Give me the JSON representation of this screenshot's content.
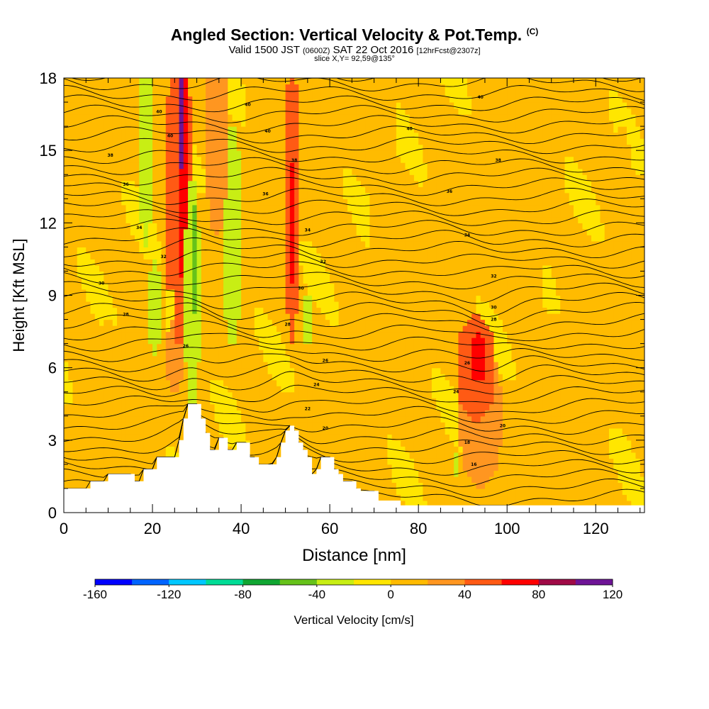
{
  "header": {
    "title": "Angled Section: Vertical Velocity & Pot.Temp.",
    "title_suffix": "(C)",
    "valid_prefix": "Valid 1500 JST",
    "valid_zulu": "(0600Z)",
    "valid_date": "SAT 22 Oct 2016",
    "forecast": "[12hrFcst@2307z]",
    "slice": "slice X,Y= 92,59@135°"
  },
  "chart_data": {
    "type": "heatmap",
    "xlabel": "Distance [nm]",
    "ylabel": "Height [Kft MSL]",
    "xlim": [
      0,
      131
    ],
    "ylim": [
      0,
      18
    ],
    "x_ticks": [
      "0",
      "20",
      "40",
      "60",
      "80",
      "100",
      "120"
    ],
    "y_ticks": [
      "0",
      "3",
      "6",
      "9",
      "12",
      "15",
      "18"
    ],
    "colorbar": {
      "label": "Vertical Velocity [cm/s]",
      "tick_labels": [
        "-160",
        "-120",
        "-80",
        "-40",
        "0",
        "40",
        "80",
        "120"
      ],
      "min": -160,
      "max": 120,
      "step": 20,
      "colors": [
        "#0000ff",
        "#0064ff",
        "#00c8ff",
        "#00dc96",
        "#10a632",
        "#66c21a",
        "#c8ee14",
        "#ffe600",
        "#ffbb00",
        "#ff9620",
        "#ff5a14",
        "#ff0000",
        "#a00a46",
        "#6e1496"
      ]
    },
    "terrain_kft": [
      [
        0,
        1.0
      ],
      [
        5,
        1.0
      ],
      [
        6,
        1.3
      ],
      [
        9,
        1.3
      ],
      [
        10,
        1.6
      ],
      [
        15,
        1.6
      ],
      [
        16,
        1.3
      ],
      [
        17,
        1.3
      ],
      [
        18,
        1.8
      ],
      [
        20,
        1.8
      ],
      [
        21,
        2.3
      ],
      [
        25,
        2.3
      ],
      [
        26,
        3.0
      ],
      [
        27,
        3.9
      ],
      [
        28,
        4.5
      ],
      [
        30,
        4.5
      ],
      [
        31,
        3.9
      ],
      [
        32,
        3.3
      ],
      [
        33,
        2.6
      ],
      [
        34,
        2.6
      ],
      [
        35,
        3.1
      ],
      [
        36,
        3.1
      ],
      [
        37,
        2.6
      ],
      [
        38,
        2.6
      ],
      [
        39,
        2.9
      ],
      [
        41,
        2.9
      ],
      [
        42,
        2.3
      ],
      [
        43,
        2.3
      ],
      [
        44,
        2.0
      ],
      [
        47,
        2.0
      ],
      [
        48,
        2.3
      ],
      [
        49,
        2.9
      ],
      [
        50,
        3.4
      ],
      [
        51,
        3.6
      ],
      [
        52,
        3.4
      ],
      [
        53,
        2.9
      ],
      [
        54,
        2.6
      ],
      [
        55,
        2.3
      ],
      [
        56,
        1.6
      ],
      [
        57,
        1.8
      ],
      [
        58,
        2.3
      ],
      [
        60,
        2.3
      ],
      [
        61,
        1.8
      ],
      [
        62,
        1.6
      ],
      [
        63,
        1.3
      ],
      [
        65,
        1.3
      ],
      [
        66,
        1.0
      ],
      [
        67,
        0.9
      ],
      [
        70,
        0.9
      ],
      [
        71,
        0.5
      ],
      [
        75,
        0.5
      ],
      [
        76,
        0.3
      ],
      [
        131,
        0.3
      ]
    ],
    "velocity_features": [
      {
        "x": 26.5,
        "y": 16.5,
        "w": 0.8,
        "h": 2.2,
        "v": 120
      },
      {
        "x": 27.0,
        "y": 14.0,
        "w": 1.4,
        "h": 4.5,
        "v": 75
      },
      {
        "x": 26.0,
        "y": 13.0,
        "w": 3.5,
        "h": 6.0,
        "v": 40
      },
      {
        "x": 29.5,
        "y": 10.5,
        "w": 0.8,
        "h": 2.2,
        "v": -60
      },
      {
        "x": 29.0,
        "y": 9.0,
        "w": 1.8,
        "h": 5.0,
        "v": -35
      },
      {
        "x": 18.5,
        "y": 15.0,
        "w": 1.5,
        "h": 4.0,
        "v": -35
      },
      {
        "x": 20.5,
        "y": 8.5,
        "w": 1.5,
        "h": 2.0,
        "v": -30
      },
      {
        "x": 24.0,
        "y": 7.5,
        "w": 1.5,
        "h": 1.8,
        "v": -20
      },
      {
        "x": 38.0,
        "y": 11.5,
        "w": 2.4,
        "h": 4.5,
        "v": -30
      },
      {
        "x": 34.5,
        "y": 15.5,
        "w": 2.5,
        "h": 4.0,
        "v": 30
      },
      {
        "x": 51.5,
        "y": 12.0,
        "w": 0.8,
        "h": 2.5,
        "v": 75
      },
      {
        "x": 51.5,
        "y": 13.0,
        "w": 1.6,
        "h": 6.0,
        "v": 45
      },
      {
        "x": 55.0,
        "y": 8.0,
        "w": 0.8,
        "h": 1.2,
        "v": -30
      },
      {
        "x": 44.0,
        "y": 15.5,
        "w": 3.0,
        "h": 3.0,
        "v": 10
      },
      {
        "x": 93.5,
        "y": 6.4,
        "w": 2.0,
        "h": 1.0,
        "v": 70
      },
      {
        "x": 93.0,
        "y": 6.0,
        "w": 4.5,
        "h": 2.2,
        "v": 45
      },
      {
        "x": 94.0,
        "y": 4.0,
        "w": 5.0,
        "h": 3.0,
        "v": 25
      },
      {
        "x": 88.5,
        "y": 2.0,
        "w": 0.5,
        "h": 0.4,
        "v": -25
      },
      {
        "x": 25.0,
        "y": 6.5,
        "w": 2.0,
        "h": 1.5,
        "v": 35
      },
      {
        "x": 10.0,
        "y": 5.0,
        "w": 5.0,
        "h": 3.0,
        "v": 15
      },
      {
        "x": 60.0,
        "y": 4.5,
        "w": 6.0,
        "h": 3.0,
        "v": 15
      },
      {
        "x": 110.0,
        "y": 3.0,
        "w": 12.0,
        "h": 3.0,
        "v": 12
      },
      {
        "x": 72.0,
        "y": 14.0,
        "w": 3.0,
        "h": 8.0,
        "v": 12
      },
      {
        "x": 105.0,
        "y": 14.0,
        "w": 4.0,
        "h": 8.0,
        "v": 10
      },
      {
        "x": 126.0,
        "y": 10.0,
        "w": 3.0,
        "h": 6.0,
        "v": 12
      }
    ],
    "theta_contour_labels": [
      {
        "x": 21.5,
        "y": 16.6,
        "label": "40"
      },
      {
        "x": 24.0,
        "y": 15.6,
        "label": "40"
      },
      {
        "x": 41.5,
        "y": 16.9,
        "label": "40"
      },
      {
        "x": 46.0,
        "y": 15.8,
        "label": "40"
      },
      {
        "x": 78.0,
        "y": 15.9,
        "label": "40"
      },
      {
        "x": 94.0,
        "y": 17.2,
        "label": "40"
      },
      {
        "x": 10.5,
        "y": 14.8,
        "label": "38"
      },
      {
        "x": 52.0,
        "y": 14.6,
        "label": "38"
      },
      {
        "x": 98.0,
        "y": 14.6,
        "label": "38"
      },
      {
        "x": 14.0,
        "y": 13.6,
        "label": "36"
      },
      {
        "x": 45.5,
        "y": 13.2,
        "label": "36"
      },
      {
        "x": 87.0,
        "y": 13.3,
        "label": "36"
      },
      {
        "x": 17.0,
        "y": 11.8,
        "label": "34"
      },
      {
        "x": 55.0,
        "y": 11.7,
        "label": "34"
      },
      {
        "x": 91.0,
        "y": 11.5,
        "label": "34"
      },
      {
        "x": 22.5,
        "y": 10.6,
        "label": "32"
      },
      {
        "x": 58.5,
        "y": 10.4,
        "label": "32"
      },
      {
        "x": 97.0,
        "y": 9.8,
        "label": "32"
      },
      {
        "x": 8.5,
        "y": 9.5,
        "label": "30"
      },
      {
        "x": 53.5,
        "y": 9.3,
        "label": "30"
      },
      {
        "x": 97.0,
        "y": 8.5,
        "label": "30"
      },
      {
        "x": 14.0,
        "y": 8.2,
        "label": "28"
      },
      {
        "x": 50.5,
        "y": 7.8,
        "label": "28"
      },
      {
        "x": 97.0,
        "y": 8.0,
        "label": "28"
      },
      {
        "x": 27.5,
        "y": 6.9,
        "label": "26"
      },
      {
        "x": 59.0,
        "y": 6.3,
        "label": "26"
      },
      {
        "x": 91.0,
        "y": 6.2,
        "label": "26"
      },
      {
        "x": 57.0,
        "y": 5.3,
        "label": "24"
      },
      {
        "x": 88.5,
        "y": 5.0,
        "label": "24"
      },
      {
        "x": 55.0,
        "y": 4.3,
        "label": "22"
      },
      {
        "x": 59.0,
        "y": 3.5,
        "label": "20"
      },
      {
        "x": 99.0,
        "y": 3.6,
        "label": "20"
      },
      {
        "x": 91.0,
        "y": 2.9,
        "label": "18"
      },
      {
        "x": 92.5,
        "y": 2.0,
        "label": "16"
      }
    ]
  }
}
